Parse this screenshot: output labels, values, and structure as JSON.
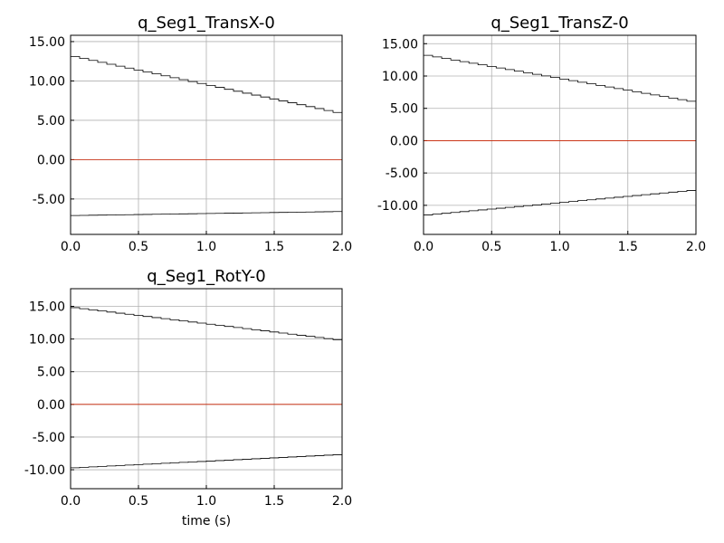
{
  "chart_data": [
    {
      "type": "line",
      "title": "q_Seg1_TransX-0",
      "xlabel": "",
      "xlim": [
        0.0,
        2.0
      ],
      "ylim": [
        -9.5,
        15.8
      ],
      "xticks": [
        "0.0",
        "0.5",
        "1.0",
        "1.5",
        "2.0"
      ],
      "yticks": [
        "-5.00",
        "0.00",
        "5.00",
        "10.00",
        "15.00"
      ],
      "grid": true,
      "steps": 30,
      "series": [
        {
          "color": "#000000",
          "x": [
            0.0,
            2.0
          ],
          "y": [
            13.1,
            6.0
          ]
        },
        {
          "color": "#cc2200",
          "x": [
            0.0,
            2.0
          ],
          "y": [
            0.0,
            0.0
          ]
        },
        {
          "color": "#000000",
          "x": [
            0.0,
            2.0
          ],
          "y": [
            -7.1,
            -6.6
          ]
        }
      ]
    },
    {
      "type": "line",
      "title": "q_Seg1_TransZ-0",
      "xlabel": "",
      "xlim": [
        0.0,
        2.0
      ],
      "ylim": [
        -14.5,
        16.3
      ],
      "xticks": [
        "0.0",
        "0.5",
        "1.0",
        "1.5",
        "2.0"
      ],
      "yticks": [
        "-10.00",
        "-5.00",
        "0.00",
        "5.00",
        "10.00",
        "15.00"
      ],
      "grid": true,
      "steps": 30,
      "series": [
        {
          "color": "#000000",
          "x": [
            0.0,
            2.0
          ],
          "y": [
            13.2,
            6.1
          ]
        },
        {
          "color": "#cc2200",
          "x": [
            0.0,
            2.0
          ],
          "y": [
            0.0,
            0.0
          ]
        },
        {
          "color": "#000000",
          "x": [
            0.0,
            2.0
          ],
          "y": [
            -11.5,
            -7.7
          ]
        }
      ]
    },
    {
      "type": "line",
      "title": "q_Seg1_RotY-0",
      "xlabel": "time (s)",
      "xlim": [
        0.0,
        2.0
      ],
      "ylim": [
        -12.9,
        17.7
      ],
      "xticks": [
        "0.0",
        "0.5",
        "1.0",
        "1.5",
        "2.0"
      ],
      "yticks": [
        "-10.00",
        "-5.00",
        "0.00",
        "5.00",
        "10.00",
        "15.00"
      ],
      "grid": true,
      "steps": 30,
      "series": [
        {
          "color": "#000000",
          "x": [
            0.0,
            2.0
          ],
          "y": [
            14.8,
            9.9
          ]
        },
        {
          "color": "#cc2200",
          "x": [
            0.0,
            2.0
          ],
          "y": [
            0.0,
            0.0
          ]
        },
        {
          "color": "#000000",
          "x": [
            0.0,
            2.0
          ],
          "y": [
            -9.7,
            -7.7
          ]
        }
      ]
    }
  ]
}
